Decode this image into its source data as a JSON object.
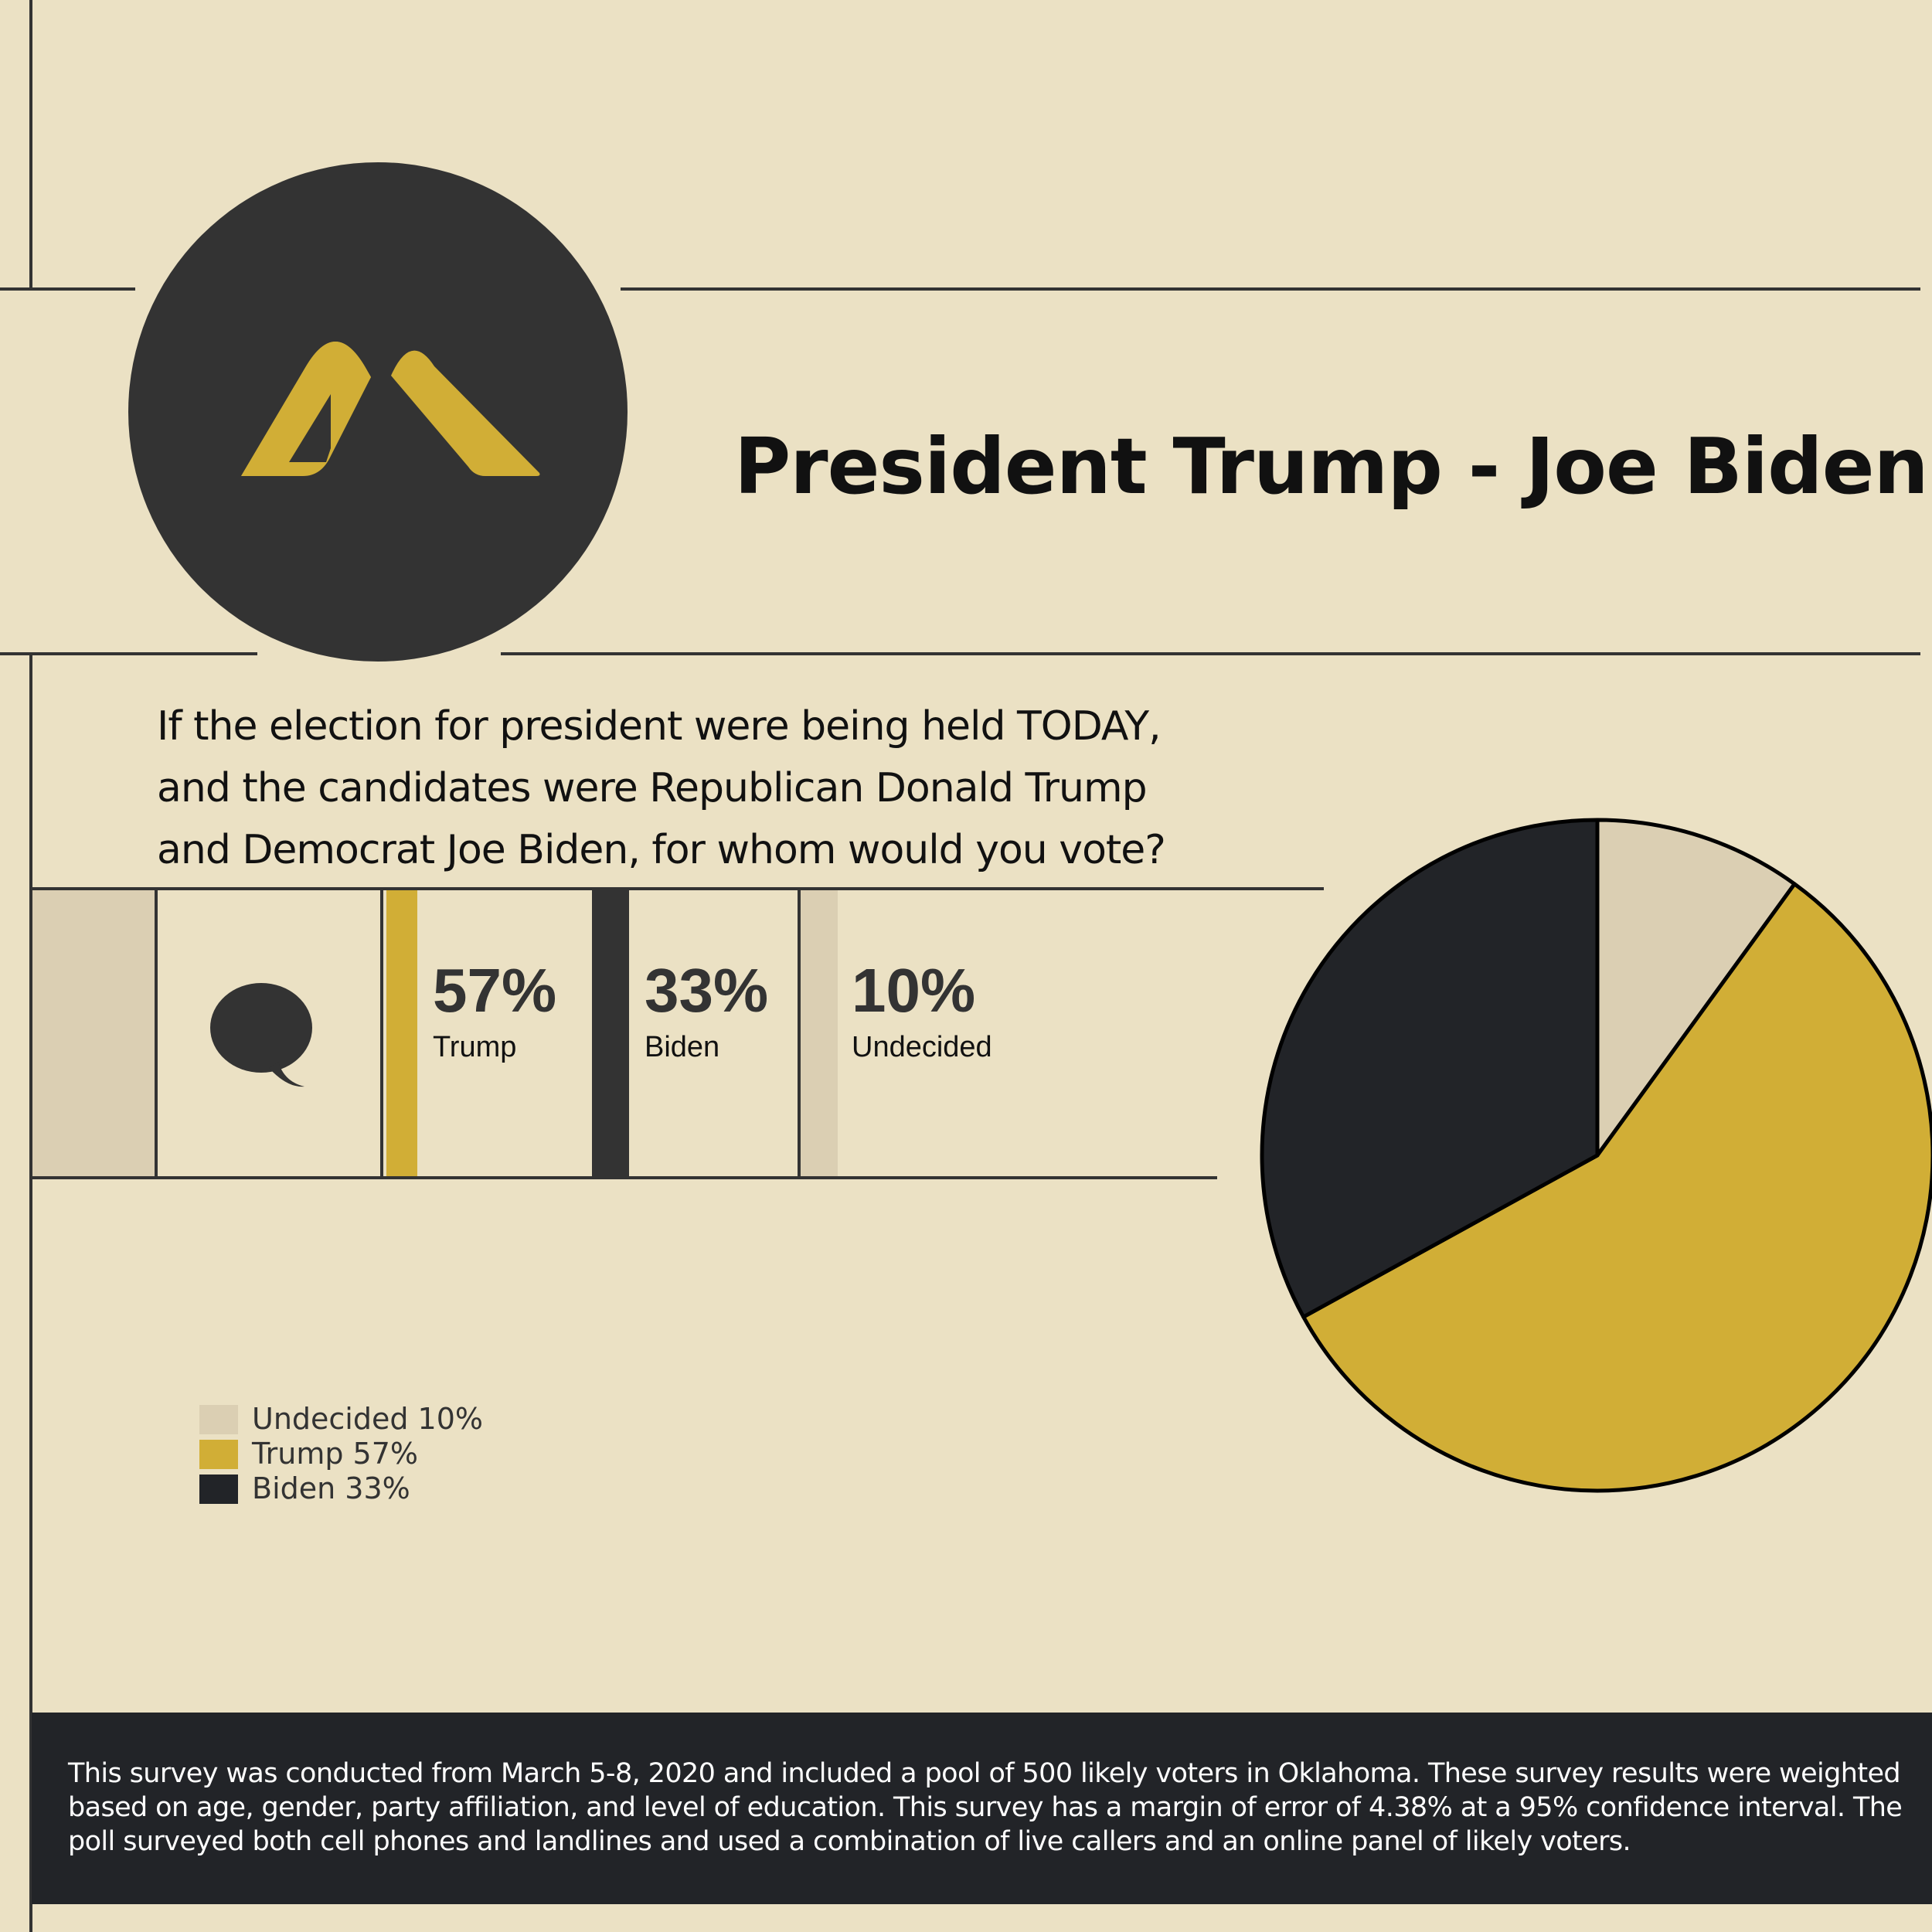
{
  "header": {
    "title": "President Trump - Joe Biden"
  },
  "question": {
    "lines": [
      "If the election for president were being held TODAY,",
      "and the candidates were Republican Donald Trump",
      "and Democrat Joe Biden, for whom would you vote?"
    ]
  },
  "icons": {
    "logo": "brand-logo-icon",
    "question": "speech-bubble-icon"
  },
  "stats": [
    {
      "value": "57%",
      "label": "Trump",
      "color": "#d1ae36"
    },
    {
      "value": "33%",
      "label": "Biden",
      "color": "#333333"
    },
    {
      "value": "10%",
      "label": "Undecided",
      "color": "#dbcfb3"
    }
  ],
  "legend": [
    {
      "label": "Undecided 10%",
      "color": "#dbcfb3"
    },
    {
      "label": "Trump 57%",
      "color": "#d1ae36"
    },
    {
      "label": "Biden 33%",
      "color": "#222428"
    }
  ],
  "colors": {
    "background": "#ebe1c4",
    "gold": "#d1ae36",
    "dark": "#333333",
    "footer": "#222428",
    "undecided": "#dbcfb3"
  },
  "chart_data": {
    "type": "pie",
    "categories": [
      "Undecided",
      "Trump",
      "Biden"
    ],
    "values": [
      10,
      57,
      33
    ],
    "colors": [
      "#dbcfb3",
      "#d1ae36",
      "#222428"
    ],
    "legend_position": "bottom-left"
  },
  "footer": {
    "text": "This survey was conducted from March 5-8, 2020 and included a pool of 500 likely voters in Oklahoma. These survey results were weighted based on age, gender, party affiliation, and level of education. This survey has a margin of error of 4.38% at a 95% confidence interval. The poll surveyed both cell phones and landlines and used a combination of live callers and an online panel of likely voters."
  }
}
